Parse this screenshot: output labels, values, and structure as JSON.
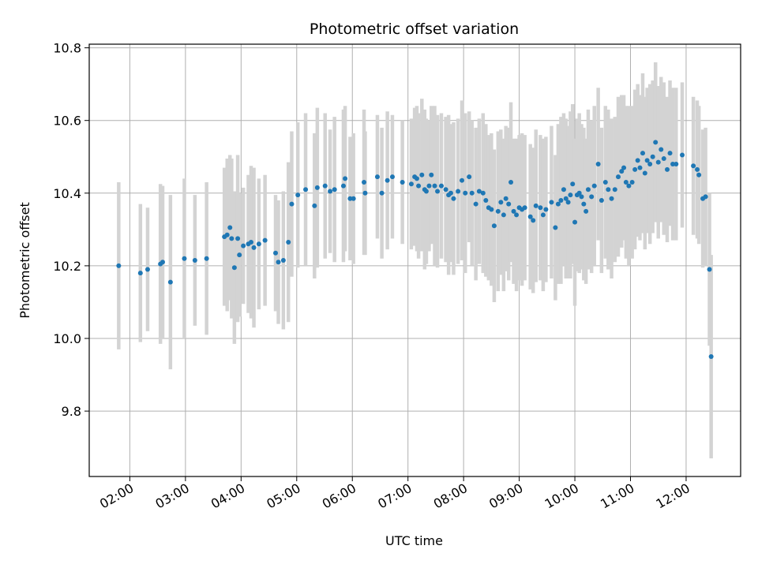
{
  "chart_data": {
    "type": "scatter",
    "title": "Photometric offset variation",
    "xlabel": "UTC time",
    "ylabel": "Photometric offset",
    "x_unit": "decimal hours UTC",
    "xlim": [
      1.27,
      12.98
    ],
    "ylim": [
      9.62,
      10.81
    ],
    "grid": true,
    "x_ticks": [
      {
        "value": 2,
        "label": "02:00"
      },
      {
        "value": 3,
        "label": "03:00"
      },
      {
        "value": 4,
        "label": "04:00"
      },
      {
        "value": 5,
        "label": "05:00"
      },
      {
        "value": 6,
        "label": "06:00"
      },
      {
        "value": 7,
        "label": "07:00"
      },
      {
        "value": 8,
        "label": "08:00"
      },
      {
        "value": 9,
        "label": "09:00"
      },
      {
        "value": 10,
        "label": "10:00"
      },
      {
        "value": 11,
        "label": "11:00"
      },
      {
        "value": 12,
        "label": "12:00"
      }
    ],
    "y_ticks": [
      {
        "value": 9.8,
        "label": "9.8"
      },
      {
        "value": 10.0,
        "label": "10.0"
      },
      {
        "value": 10.2,
        "label": "10.2"
      },
      {
        "value": 10.4,
        "label": "10.4"
      },
      {
        "value": 10.6,
        "label": "10.6"
      },
      {
        "value": 10.8,
        "label": "10.8"
      }
    ],
    "marker_color": "#1f77b4",
    "errorbar_color": "#d3d3d3",
    "series": [
      {
        "name": "offset",
        "points": [
          [
            1.8,
            10.2,
            0.23
          ],
          [
            2.19,
            10.18,
            0.19
          ],
          [
            2.32,
            10.19,
            0.17
          ],
          [
            2.55,
            10.205,
            0.22
          ],
          [
            2.59,
            10.21,
            0.21
          ],
          [
            2.73,
            10.155,
            0.24
          ],
          [
            2.98,
            10.22,
            0.22
          ],
          [
            3.17,
            10.215,
            0.18
          ],
          [
            3.38,
            10.22,
            0.21
          ],
          [
            3.7,
            10.28,
            0.19
          ],
          [
            3.75,
            10.285,
            0.21
          ],
          [
            3.8,
            10.305,
            0.2
          ],
          [
            3.83,
            10.275,
            0.22
          ],
          [
            3.88,
            10.195,
            0.21
          ],
          [
            3.94,
            10.275,
            0.23
          ],
          [
            3.97,
            10.23,
            0.17
          ],
          [
            4.04,
            10.255,
            0.16
          ],
          [
            4.13,
            10.26,
            0.19
          ],
          [
            4.18,
            10.265,
            0.21
          ],
          [
            4.23,
            10.25,
            0.22
          ],
          [
            4.32,
            10.26,
            0.18
          ],
          [
            4.43,
            10.27,
            0.18
          ],
          [
            4.62,
            10.235,
            0.16
          ],
          [
            4.67,
            10.21,
            0.17
          ],
          [
            4.76,
            10.215,
            0.19
          ],
          [
            4.85,
            10.265,
            0.22
          ],
          [
            4.91,
            10.37,
            0.2
          ],
          [
            5.02,
            10.395,
            0.2
          ],
          [
            5.16,
            10.41,
            0.21
          ],
          [
            5.32,
            10.365,
            0.2
          ],
          [
            5.37,
            10.415,
            0.22
          ],
          [
            5.51,
            10.42,
            0.2
          ],
          [
            5.6,
            10.405,
            0.17
          ],
          [
            5.68,
            10.41,
            0.2
          ],
          [
            5.84,
            10.42,
            0.21
          ],
          [
            5.87,
            10.44,
            0.2
          ],
          [
            5.96,
            10.385,
            0.17
          ],
          [
            6.02,
            10.385,
            0.18
          ],
          [
            6.21,
            10.43,
            0.2
          ],
          [
            6.23,
            10.4,
            0.17
          ],
          [
            6.45,
            10.445,
            0.17
          ],
          [
            6.53,
            10.4,
            0.18
          ],
          [
            6.63,
            10.435,
            0.19
          ],
          [
            6.72,
            10.445,
            0.17
          ],
          [
            6.9,
            10.43,
            0.17
          ],
          [
            7.06,
            10.425,
            0.18
          ],
          [
            7.12,
            10.445,
            0.19
          ],
          [
            7.16,
            10.44,
            0.2
          ],
          [
            7.19,
            10.42,
            0.2
          ],
          [
            7.25,
            10.45,
            0.21
          ],
          [
            7.3,
            10.41,
            0.22
          ],
          [
            7.33,
            10.405,
            0.2
          ],
          [
            7.38,
            10.42,
            0.18
          ],
          [
            7.42,
            10.45,
            0.19
          ],
          [
            7.48,
            10.42,
            0.22
          ],
          [
            7.53,
            10.405,
            0.21
          ],
          [
            7.6,
            10.42,
            0.2
          ],
          [
            7.68,
            10.41,
            0.2
          ],
          [
            7.73,
            10.395,
            0.22
          ],
          [
            7.77,
            10.4,
            0.19
          ],
          [
            7.82,
            10.385,
            0.21
          ],
          [
            7.9,
            10.405,
            0.2
          ],
          [
            7.97,
            10.435,
            0.22
          ],
          [
            8.03,
            10.4,
            0.22
          ],
          [
            8.1,
            10.445,
            0.18
          ],
          [
            8.15,
            10.4,
            0.2
          ],
          [
            8.22,
            10.37,
            0.21
          ],
          [
            8.28,
            10.405,
            0.2
          ],
          [
            8.35,
            10.4,
            0.22
          ],
          [
            8.4,
            10.38,
            0.21
          ],
          [
            8.45,
            10.36,
            0.2
          ],
          [
            8.5,
            10.355,
            0.21
          ],
          [
            8.55,
            10.31,
            0.21
          ],
          [
            8.62,
            10.35,
            0.22
          ],
          [
            8.67,
            10.375,
            0.2
          ],
          [
            8.72,
            10.34,
            0.21
          ],
          [
            8.76,
            10.385,
            0.2
          ],
          [
            8.81,
            10.37,
            0.21
          ],
          [
            8.85,
            10.43,
            0.22
          ],
          [
            8.9,
            10.35,
            0.2
          ],
          [
            8.95,
            10.34,
            0.21
          ],
          [
            9.0,
            10.36,
            0.2
          ],
          [
            9.05,
            10.355,
            0.21
          ],
          [
            9.1,
            10.36,
            0.2
          ],
          [
            9.2,
            10.335,
            0.2
          ],
          [
            9.25,
            10.325,
            0.2
          ],
          [
            9.3,
            10.365,
            0.21
          ],
          [
            9.38,
            10.36,
            0.2
          ],
          [
            9.43,
            10.34,
            0.21
          ],
          [
            9.48,
            10.355,
            0.2
          ],
          [
            9.58,
            10.375,
            0.21
          ],
          [
            9.65,
            10.305,
            0.2
          ],
          [
            9.7,
            10.37,
            0.22
          ],
          [
            9.75,
            10.38,
            0.23
          ],
          [
            9.8,
            10.41,
            0.21
          ],
          [
            9.84,
            10.385,
            0.22
          ],
          [
            9.88,
            10.375,
            0.21
          ],
          [
            9.92,
            10.395,
            0.23
          ],
          [
            9.96,
            10.425,
            0.22
          ],
          [
            10.0,
            10.32,
            0.23
          ],
          [
            10.04,
            10.395,
            0.21
          ],
          [
            10.08,
            10.4,
            0.22
          ],
          [
            10.12,
            10.39,
            0.2
          ],
          [
            10.16,
            10.37,
            0.21
          ],
          [
            10.2,
            10.35,
            0.2
          ],
          [
            10.24,
            10.41,
            0.22
          ],
          [
            10.3,
            10.39,
            0.21
          ],
          [
            10.35,
            10.42,
            0.22
          ],
          [
            10.42,
            10.48,
            0.21
          ],
          [
            10.48,
            10.38,
            0.2
          ],
          [
            10.55,
            10.43,
            0.21
          ],
          [
            10.6,
            10.41,
            0.22
          ],
          [
            10.66,
            10.385,
            0.22
          ],
          [
            10.72,
            10.41,
            0.2
          ],
          [
            10.78,
            10.445,
            0.22
          ],
          [
            10.84,
            10.46,
            0.21
          ],
          [
            10.88,
            10.47,
            0.2
          ],
          [
            10.92,
            10.43,
            0.21
          ],
          [
            10.97,
            10.42,
            0.22
          ],
          [
            11.03,
            10.43,
            0.21
          ],
          [
            11.08,
            10.465,
            0.22
          ],
          [
            11.13,
            10.49,
            0.21
          ],
          [
            11.17,
            10.47,
            0.2
          ],
          [
            11.22,
            10.51,
            0.22
          ],
          [
            11.26,
            10.455,
            0.21
          ],
          [
            11.3,
            10.49,
            0.2
          ],
          [
            11.35,
            10.48,
            0.22
          ],
          [
            11.4,
            10.5,
            0.21
          ],
          [
            11.45,
            10.54,
            0.22
          ],
          [
            11.5,
            10.485,
            0.21
          ],
          [
            11.55,
            10.52,
            0.2
          ],
          [
            11.6,
            10.495,
            0.21
          ],
          [
            11.66,
            10.465,
            0.2
          ],
          [
            11.71,
            10.51,
            0.2
          ],
          [
            11.76,
            10.48,
            0.21
          ],
          [
            11.82,
            10.48,
            0.21
          ],
          [
            11.93,
            10.505,
            0.2
          ],
          [
            12.13,
            10.475,
            0.19
          ],
          [
            12.2,
            10.465,
            0.19
          ],
          [
            12.23,
            10.45,
            0.19
          ],
          [
            12.3,
            10.385,
            0.19
          ],
          [
            12.35,
            10.39,
            0.19
          ],
          [
            12.42,
            10.19,
            0.21
          ],
          [
            12.45,
            9.95,
            0.28
          ]
        ]
      }
    ]
  }
}
